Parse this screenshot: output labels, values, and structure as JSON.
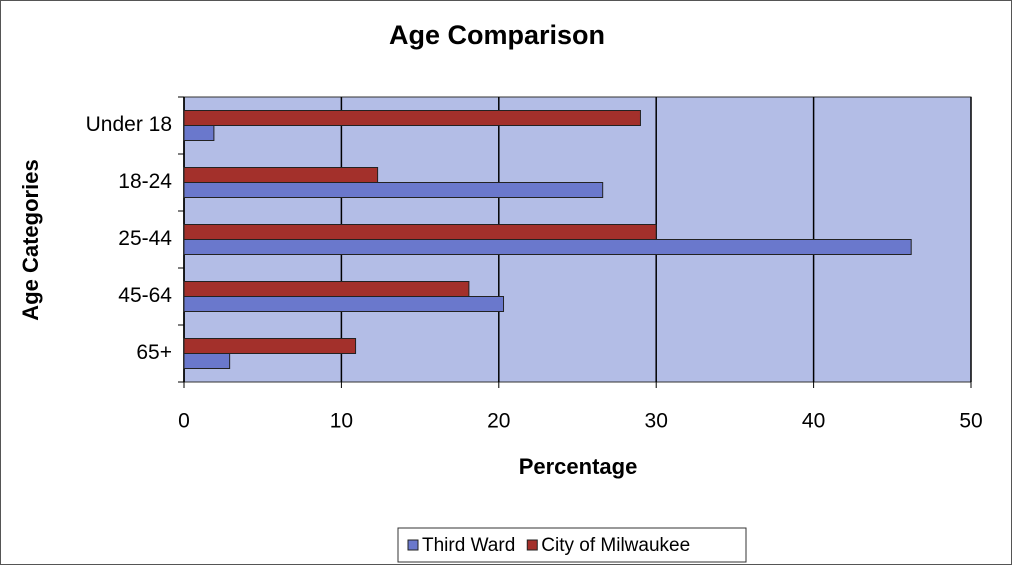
{
  "chart_data": {
    "type": "hbar",
    "title": "Age Comparison",
    "x_label": "Percentage",
    "y_label": "Age Categories",
    "categories": [
      "Under 18",
      "18-24",
      "25-44",
      "45-64",
      "65+"
    ],
    "series": [
      {
        "name": "Third Ward",
        "color": "#6a78cc",
        "values": [
          1.9,
          26.6,
          46.2,
          20.3,
          2.9
        ]
      },
      {
        "name": "City of Milwaukee",
        "color": "#a3302b",
        "values": [
          29,
          12.3,
          30,
          18.1,
          10.9
        ]
      }
    ],
    "xlim": [
      0,
      50
    ],
    "xticks": [
      0,
      10,
      20,
      30,
      40,
      50
    ],
    "grid": true,
    "legend": "bottom"
  }
}
